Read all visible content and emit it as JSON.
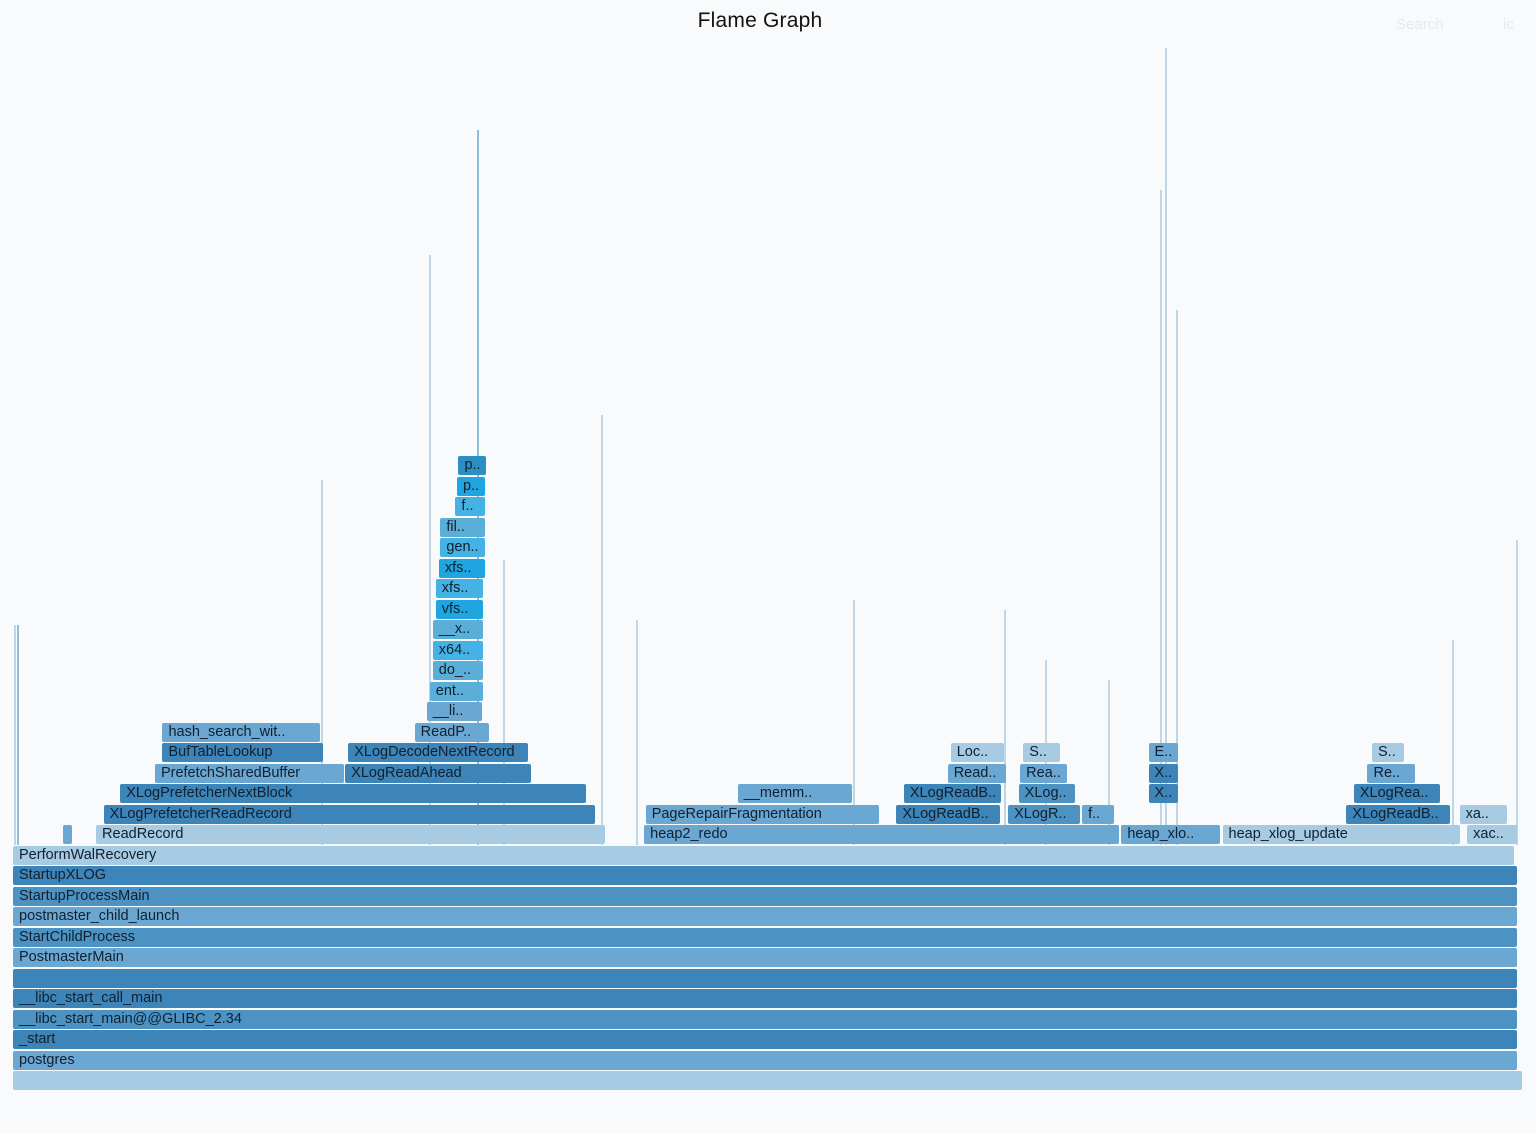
{
  "header": {
    "title": "Flame Graph",
    "search_placeholder": "Search",
    "ic_label": "ic"
  },
  "colors": {
    "background": "#f8fafb",
    "c1": "#a7cbe2",
    "c2": "#6ba7d3",
    "c3": "#4c93c4",
    "c4": "#3d84b9",
    "c5": "#5aaed8",
    "c6": "#45b2e5",
    "c7": "#1fa6e0",
    "c8": "#2b8fc4"
  },
  "chart_data": {
    "type": "flamegraph",
    "title": "Flame Graph",
    "frames": [
      {
        "level": 0,
        "label": "",
        "start": 0.0,
        "width": 1.0,
        "color": "c1"
      },
      {
        "level": 1,
        "label": "postgres",
        "start": 0.0,
        "width": 0.997,
        "color": "c2"
      },
      {
        "level": 2,
        "label": "_start",
        "start": 0.0,
        "width": 0.997,
        "color": "c4"
      },
      {
        "level": 3,
        "label": "__libc_start_main@@GLIBC_2.34",
        "start": 0.0,
        "width": 0.997,
        "color": "c3"
      },
      {
        "level": 4,
        "label": "__libc_start_call_main",
        "start": 0.0,
        "width": 0.997,
        "color": "c4"
      },
      {
        "level": 5,
        "label": "",
        "start": 0.0,
        "width": 0.997,
        "color": "c4"
      },
      {
        "level": 6,
        "label": "PostmasterMain",
        "start": 0.0,
        "width": 0.997,
        "color": "c2"
      },
      {
        "level": 7,
        "label": "StartChildProcess",
        "start": 0.0,
        "width": 0.997,
        "color": "c3"
      },
      {
        "level": 8,
        "label": "postmaster_child_launch",
        "start": 0.0,
        "width": 0.997,
        "color": "c2"
      },
      {
        "level": 9,
        "label": "StartupProcessMain",
        "start": 0.0,
        "width": 0.997,
        "color": "c3"
      },
      {
        "level": 10,
        "label": "StartupXLOG",
        "start": 0.0,
        "width": 0.997,
        "color": "c4"
      },
      {
        "level": 11,
        "label": "PerformWalRecovery",
        "start": 0.0,
        "width": 0.995,
        "color": "c1"
      },
      {
        "level": 12,
        "label": "",
        "start": 0.033,
        "width": 0.007,
        "color": "c2"
      },
      {
        "level": 12,
        "label": "ReadRecord",
        "start": 0.055,
        "width": 0.338,
        "color": "c1"
      },
      {
        "level": 12,
        "label": "heap2_redo",
        "start": 0.418,
        "width": 0.315,
        "color": "c2"
      },
      {
        "level": 12,
        "label": "heap_xlo..",
        "start": 0.734,
        "width": 0.066,
        "color": "c2"
      },
      {
        "level": 12,
        "label": "heap_xlog_update",
        "start": 0.801,
        "width": 0.158,
        "color": "c1"
      },
      {
        "level": 12,
        "label": "xac..",
        "start": 0.963,
        "width": 0.034,
        "color": "c1"
      },
      {
        "level": 13,
        "label": "XLogPrefetcherReadRecord",
        "start": 0.06,
        "width": 0.326,
        "color": "c4"
      },
      {
        "level": 13,
        "label": "PageRepairFragmentation",
        "start": 0.419,
        "width": 0.155,
        "color": "c2"
      },
      {
        "level": 13,
        "label": "XLogReadB..",
        "start": 0.585,
        "width": 0.069,
        "color": "c4"
      },
      {
        "level": 13,
        "label": "XLogR..",
        "start": 0.659,
        "width": 0.048,
        "color": "c3"
      },
      {
        "level": 13,
        "label": "f..",
        "start": 0.708,
        "width": 0.022,
        "color": "c2"
      },
      {
        "level": 13,
        "label": "XLogReadB..",
        "start": 0.883,
        "width": 0.069,
        "color": "c4"
      },
      {
        "level": 13,
        "label": "xa..",
        "start": 0.958,
        "width": 0.032,
        "color": "c1"
      },
      {
        "level": 14,
        "label": "XLogPrefetcherNextBlock",
        "start": 0.071,
        "width": 0.309,
        "color": "c4"
      },
      {
        "level": 14,
        "label": "__memm..",
        "start": 0.48,
        "width": 0.076,
        "color": "c2"
      },
      {
        "level": 14,
        "label": "XLogReadB..",
        "start": 0.59,
        "width": 0.065,
        "color": "c4"
      },
      {
        "level": 14,
        "label": "XLog..",
        "start": 0.666,
        "width": 0.038,
        "color": "c3"
      },
      {
        "level": 14,
        "label": "X..",
        "start": 0.752,
        "width": 0.02,
        "color": "c4"
      },
      {
        "level": 14,
        "label": "XLogRea..",
        "start": 0.888,
        "width": 0.058,
        "color": "c4"
      },
      {
        "level": 15,
        "label": "PrefetchSharedBuffer",
        "start": 0.094,
        "width": 0.126,
        "color": "c2"
      },
      {
        "level": 15,
        "label": "XLogReadAhead",
        "start": 0.22,
        "width": 0.124,
        "color": "c4"
      },
      {
        "level": 15,
        "label": "Read..",
        "start": 0.619,
        "width": 0.039,
        "color": "c2"
      },
      {
        "level": 15,
        "label": "Rea..",
        "start": 0.667,
        "width": 0.032,
        "color": "c2"
      },
      {
        "level": 15,
        "label": "X..",
        "start": 0.752,
        "width": 0.02,
        "color": "c4"
      },
      {
        "level": 15,
        "label": "Re..",
        "start": 0.897,
        "width": 0.032,
        "color": "c2"
      },
      {
        "level": 16,
        "label": "BufTableLookup",
        "start": 0.099,
        "width": 0.107,
        "color": "c4"
      },
      {
        "level": 16,
        "label": "XLogDecodeNextRecord",
        "start": 0.222,
        "width": 0.12,
        "color": "c4"
      },
      {
        "level": 16,
        "label": "Loc..",
        "start": 0.621,
        "width": 0.036,
        "color": "c1"
      },
      {
        "level": 16,
        "label": "S..",
        "start": 0.669,
        "width": 0.025,
        "color": "c1"
      },
      {
        "level": 16,
        "label": "E..",
        "start": 0.752,
        "width": 0.02,
        "color": "c2"
      },
      {
        "level": 16,
        "label": "S..",
        "start": 0.9,
        "width": 0.022,
        "color": "c1"
      },
      {
        "level": 17,
        "label": "hash_search_wit..",
        "start": 0.099,
        "width": 0.105,
        "color": "c2"
      },
      {
        "level": 17,
        "label": "ReadP..",
        "start": 0.266,
        "width": 0.05,
        "color": "c2"
      },
      {
        "level": 18,
        "label": "__li..",
        "start": 0.274,
        "width": 0.037,
        "color": "c2"
      },
      {
        "level": 19,
        "label": "ent..",
        "start": 0.276,
        "width": 0.036,
        "color": "c5"
      },
      {
        "level": 20,
        "label": "do_..",
        "start": 0.278,
        "width": 0.034,
        "color": "c5"
      },
      {
        "level": 21,
        "label": "x64..",
        "start": 0.278,
        "width": 0.034,
        "color": "c6"
      },
      {
        "level": 22,
        "label": "__x..",
        "start": 0.278,
        "width": 0.034,
        "color": "c5"
      },
      {
        "level": 23,
        "label": "vfs..",
        "start": 0.28,
        "width": 0.032,
        "color": "c7"
      },
      {
        "level": 24,
        "label": "xfs..",
        "start": 0.28,
        "width": 0.032,
        "color": "c6"
      },
      {
        "level": 25,
        "label": "xfs..",
        "start": 0.282,
        "width": 0.031,
        "color": "c7"
      },
      {
        "level": 26,
        "label": "gen..",
        "start": 0.283,
        "width": 0.03,
        "color": "c6"
      },
      {
        "level": 27,
        "label": "fil..",
        "start": 0.283,
        "width": 0.03,
        "color": "c5"
      },
      {
        "level": 28,
        "label": "f..",
        "start": 0.293,
        "width": 0.02,
        "color": "c6"
      },
      {
        "level": 29,
        "label": "p..",
        "start": 0.294,
        "width": 0.019,
        "color": "c7"
      },
      {
        "level": 30,
        "label": "p..",
        "start": 0.295,
        "width": 0.019,
        "color": "c8"
      }
    ]
  }
}
